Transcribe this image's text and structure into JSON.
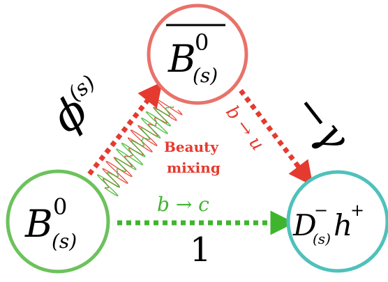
{
  "nodes": {
    "b_bar": {
      "base": "B",
      "sup": "0",
      "sub": "(s)",
      "overline": true,
      "color": "#e8726a"
    },
    "b": {
      "base": "B",
      "sup": "0",
      "sub": "(s)",
      "color": "#6cc25c"
    },
    "dh": {
      "base": "D",
      "sup": "−",
      "sub": "(s)",
      "tail": "h",
      "tail_sup": "+",
      "color": "#4fc1bb"
    }
  },
  "arrows": {
    "mixing": {
      "color": "#e53a2f"
    },
    "b_to_u": {
      "label": "b → u",
      "color": "#e53a2f"
    },
    "b_to_c": {
      "label": "b → c",
      "color": "#3fb52e"
    }
  },
  "labels": {
    "phi_s": "ϕ",
    "phi_s_sup": "(s)",
    "gamma": "−γ",
    "one": "1",
    "beauty": "Beauty",
    "mixing": "mixing",
    "beauty_color": "#e53a2f"
  }
}
